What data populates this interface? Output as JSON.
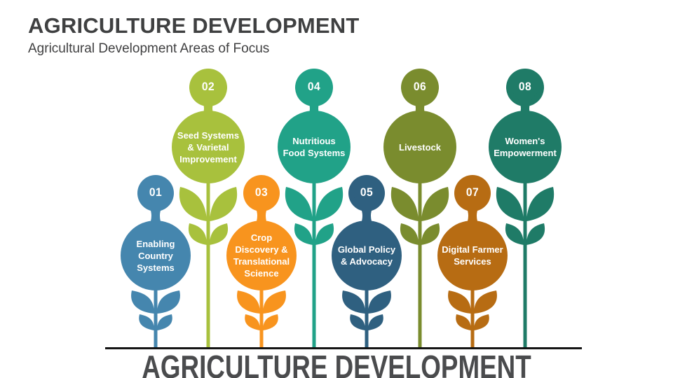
{
  "slide": {
    "title": "AGRICULTURE DEVELOPMENT",
    "subtitle": "Agricultural Development Areas of Focus",
    "footer_title": "AGRICULTURE DEVELOPMENT"
  },
  "colors": {
    "background": "#FFFFFF",
    "title_text": "#3F4041",
    "footer_text": "#4A4B4D",
    "baseline": "#141414",
    "label_text": "#FFFFFF"
  },
  "diagram": {
    "type": "flower-stem-infographic",
    "flowers": [
      {
        "number": "01",
        "label": "Enabling\nCountry\nSystems",
        "color": "#4586AE"
      },
      {
        "number": "02",
        "label": "Seed Systems\n& Varietal\nImprovement",
        "color": "#A8C13D"
      },
      {
        "number": "03",
        "label": "Crop\nDiscovery &\nTranslational\nScience",
        "color": "#F8941E"
      },
      {
        "number": "04",
        "label": "Nutritious\nFood Systems",
        "color": "#21A288"
      },
      {
        "number": "05",
        "label": "Global Policy\n& Advocacy",
        "color": "#2F6080"
      },
      {
        "number": "06",
        "label": "Livestock",
        "color": "#7A8C2E"
      },
      {
        "number": "07",
        "label": "Digital Farmer\nServices",
        "color": "#B76C13"
      },
      {
        "number": "08",
        "label": "Women's\nEmpowerment",
        "color": "#1F7B67"
      }
    ]
  }
}
